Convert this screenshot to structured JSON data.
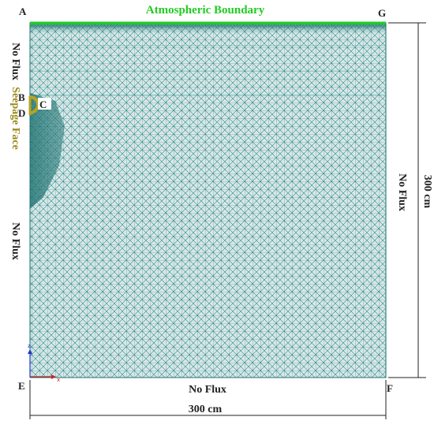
{
  "labels": {
    "atmospheric_boundary": "Atmospheric Boundary",
    "seepage_face": "Seepage Face",
    "no_flux_left_top": "No Flux",
    "no_flux_left": "No Flux",
    "no_flux_right": "No Flux",
    "no_flux_bottom": "No Flux",
    "dim_width": "300 cm",
    "dim_height": "300 cm"
  },
  "points": {
    "A": "A",
    "B": "B",
    "C": "C",
    "D": "D",
    "E": "E",
    "F": "F",
    "G": "G"
  },
  "axis_icon": {
    "z": "z",
    "x": "x"
  },
  "colors": {
    "mesh_fill": "#dbe6e6",
    "mesh_line": "#1e8c8c",
    "mesh_dense": "#1b7878",
    "atmospheric": "#22cc22",
    "seepage": "#9a8a1a",
    "seepage_marker": "#b7a41e",
    "text": "#222222",
    "axis_z": "#2233cc",
    "axis_x": "#cc2222"
  }
}
